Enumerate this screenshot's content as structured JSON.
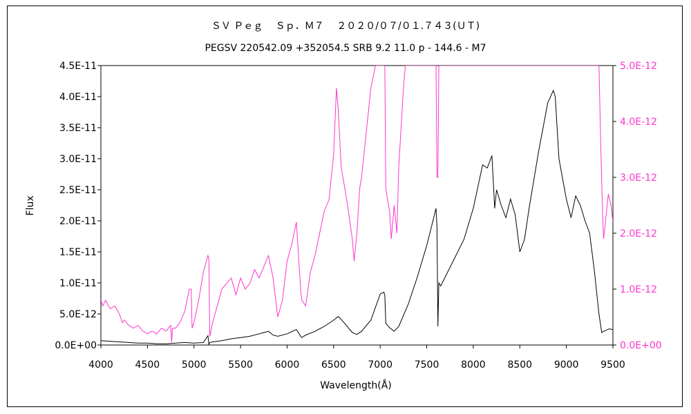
{
  "chart_data": {
    "type": "line",
    "title": "ＳＶ Ｐｅｇ　 Ｓｐ．Ｍ７　 ２０２０/０７/０１.７４３(ＵＴ)",
    "subtitle": "PEGSV 220542.09 +352054.5 SRB 9.2 11.0 p - 144.6 - M7",
    "xlabel": "Wavelength(Å)",
    "ylabel": "Flux",
    "xlim": [
      4000,
      9500
    ],
    "ylim": [
      0,
      4.5e-11
    ],
    "y2lim": [
      0,
      5e-12
    ],
    "x_ticks": [
      "4000",
      "4500",
      "5000",
      "5500",
      "6000",
      "6500",
      "7000",
      "7500",
      "8000",
      "8500",
      "9000",
      "9500"
    ],
    "y_ticks": [
      "0.0E+00",
      "5.0E-12",
      "1.0E-11",
      "1.5E-11",
      "2.0E-11",
      "2.5E-11",
      "3.0E-11",
      "3.5E-11",
      "4.0E-11",
      "4.5E-11"
    ],
    "y2_ticks": [
      "0.0E+00",
      "1.0E-12",
      "2.0E-12",
      "3.0E-12",
      "4.0E-12",
      "5.0E-12"
    ],
    "grid": false,
    "colors": {
      "primary": "#000000",
      "secondary": "#ff33cc"
    },
    "series": [
      {
        "axis": "left",
        "x": [
          4000,
          4100,
          4200,
          4300,
          4400,
          4500,
          4600,
          4700,
          4800,
          4900,
          5000,
          5100,
          5150,
          5160,
          5170,
          5200,
          5300,
          5400,
          5500,
          5600,
          5700,
          5800,
          5850,
          5900,
          6000,
          6100,
          6150,
          6160,
          6200,
          6300,
          6400,
          6500,
          6550,
          6600,
          6700,
          6750,
          6800,
          6900,
          7000,
          7040,
          7050,
          7060,
          7100,
          7150,
          7200,
          7300,
          7400,
          7500,
          7550,
          7600,
          7610,
          7620,
          7630,
          7650,
          7700,
          7800,
          7900,
          8000,
          8100,
          8150,
          8200,
          8230,
          8250,
          8300,
          8350,
          8400,
          8450,
          8500,
          8550,
          8600,
          8700,
          8800,
          8860,
          8880,
          8920,
          9000,
          9050,
          9100,
          9150,
          9200,
          9250,
          9300,
          9350,
          9380,
          9400,
          9430,
          9460,
          9500
        ],
        "y": [
          7e-13,
          6e-13,
          5e-13,
          4e-13,
          3e-13,
          3e-13,
          2e-13,
          2e-13,
          3e-13,
          4e-13,
          3e-13,
          4e-13,
          1.5e-12,
          1e-13,
          4e-13,
          5e-13,
          7e-13,
          1e-12,
          1.2e-12,
          1.4e-12,
          1.8e-12,
          2.2e-12,
          1.6e-12,
          1.4e-12,
          1.8e-12,
          2.5e-12,
          1.3e-12,
          1.2e-12,
          1.6e-12,
          2.2e-12,
          3e-12,
          4e-12,
          4.6e-12,
          3.8e-12,
          2e-12,
          1.7e-12,
          2.2e-12,
          4e-12,
          8.2e-12,
          8.5e-12,
          8e-12,
          3.5e-12,
          2.8e-12,
          2.2e-12,
          3e-12,
          6.5e-12,
          1.1e-11,
          1.6e-11,
          1.9e-11,
          2.2e-11,
          1.9e-11,
          3e-12,
          1e-11,
          9.5e-12,
          1.1e-11,
          1.4e-11,
          1.7e-11,
          2.2e-11,
          2.9e-11,
          2.85e-11,
          3.05e-11,
          2.2e-11,
          2.5e-11,
          2.25e-11,
          2.05e-11,
          2.35e-11,
          2.1e-11,
          1.5e-11,
          1.7e-11,
          2.2e-11,
          3.1e-11,
          3.9e-11,
          4.1e-11,
          4e-11,
          3e-11,
          2.35e-11,
          2.05e-11,
          2.4e-11,
          2.25e-11,
          2e-11,
          1.8e-11,
          1.2e-11,
          5e-12,
          2e-12,
          2.2e-12,
          2.4e-12,
          2.6e-12,
          2.5e-12
        ]
      },
      {
        "axis": "right",
        "x": [
          4000,
          4020,
          4050,
          4100,
          4150,
          4200,
          4230,
          4250,
          4300,
          4350,
          4400,
          4450,
          4500,
          4550,
          4600,
          4650,
          4700,
          4750,
          4760,
          4770,
          4800,
          4850,
          4900,
          4950,
          4970,
          4980,
          5000,
          5050,
          5100,
          5150,
          5160,
          5170,
          5200,
          5250,
          5300,
          5350,
          5400,
          5450,
          5500,
          5550,
          5600,
          5650,
          5700,
          5750,
          5800,
          5850,
          5900,
          5950,
          6000,
          6050,
          6100,
          6150,
          6160,
          6200,
          6250,
          6300,
          6350,
          6400,
          6450,
          6500,
          6530,
          6550,
          6580,
          6600,
          6650,
          6700,
          6720,
          6750,
          6780,
          6800,
          6850,
          6900,
          6950,
          7000,
          7040,
          7050,
          7060,
          7100,
          7120,
          7150,
          7180,
          7200,
          7250,
          7270,
          7300,
          7400,
          7500,
          7550,
          7580,
          7600,
          7610,
          7620,
          7630,
          7650,
          9350,
          9370,
          9390,
          9400,
          9420,
          9450,
          9480,
          9500
        ],
        "y": [
          8e-13,
          7e-13,
          8e-13,
          6.5e-13,
          7e-13,
          5.5e-13,
          4e-13,
          4.5e-13,
          3.5e-13,
          3e-13,
          3.5e-13,
          2.5e-13,
          2e-13,
          2.5e-13,
          2e-13,
          3e-13,
          2.5e-13,
          3.5e-13,
          5e-14,
          3e-13,
          3e-13,
          4e-13,
          6e-13,
          1e-12,
          1e-12,
          3e-13,
          4e-13,
          8e-13,
          1.3e-12,
          1.6e-12,
          1.55e-12,
          1.5e-13,
          4e-13,
          7e-13,
          1e-12,
          1.1e-12,
          1.2e-12,
          9e-13,
          1.2e-12,
          1e-12,
          1.1e-12,
          1.35e-12,
          1.2e-12,
          1.4e-12,
          1.6e-12,
          1.2e-12,
          5e-13,
          8e-13,
          1.5e-12,
          1.8e-12,
          2.2e-12,
          9e-13,
          8e-13,
          7e-13,
          1.3e-12,
          1.6e-12,
          2e-12,
          2.4e-12,
          2.6e-12,
          3.4e-12,
          4.6e-12,
          4.2e-12,
          3.2e-12,
          3e-12,
          2.5e-12,
          1.9e-12,
          1.5e-12,
          2e-12,
          2.8e-12,
          3e-12,
          3.8e-12,
          4.6e-12,
          5e-12,
          5e-12,
          5e-12,
          5e-12,
          2.8e-12,
          2.4e-12,
          1.9e-12,
          2.5e-12,
          2e-12,
          3.2e-12,
          4.6e-12,
          5e-12,
          5e-12,
          5e-12,
          5e-12,
          5e-12,
          5e-12,
          5e-12,
          3e-12,
          3e-12,
          5e-12,
          5e-12,
          5e-12,
          3.5e-12,
          2.3e-12,
          1.9e-12,
          2.2e-12,
          2.7e-12,
          2.5e-12,
          2.2e-12
        ]
      }
    ]
  }
}
